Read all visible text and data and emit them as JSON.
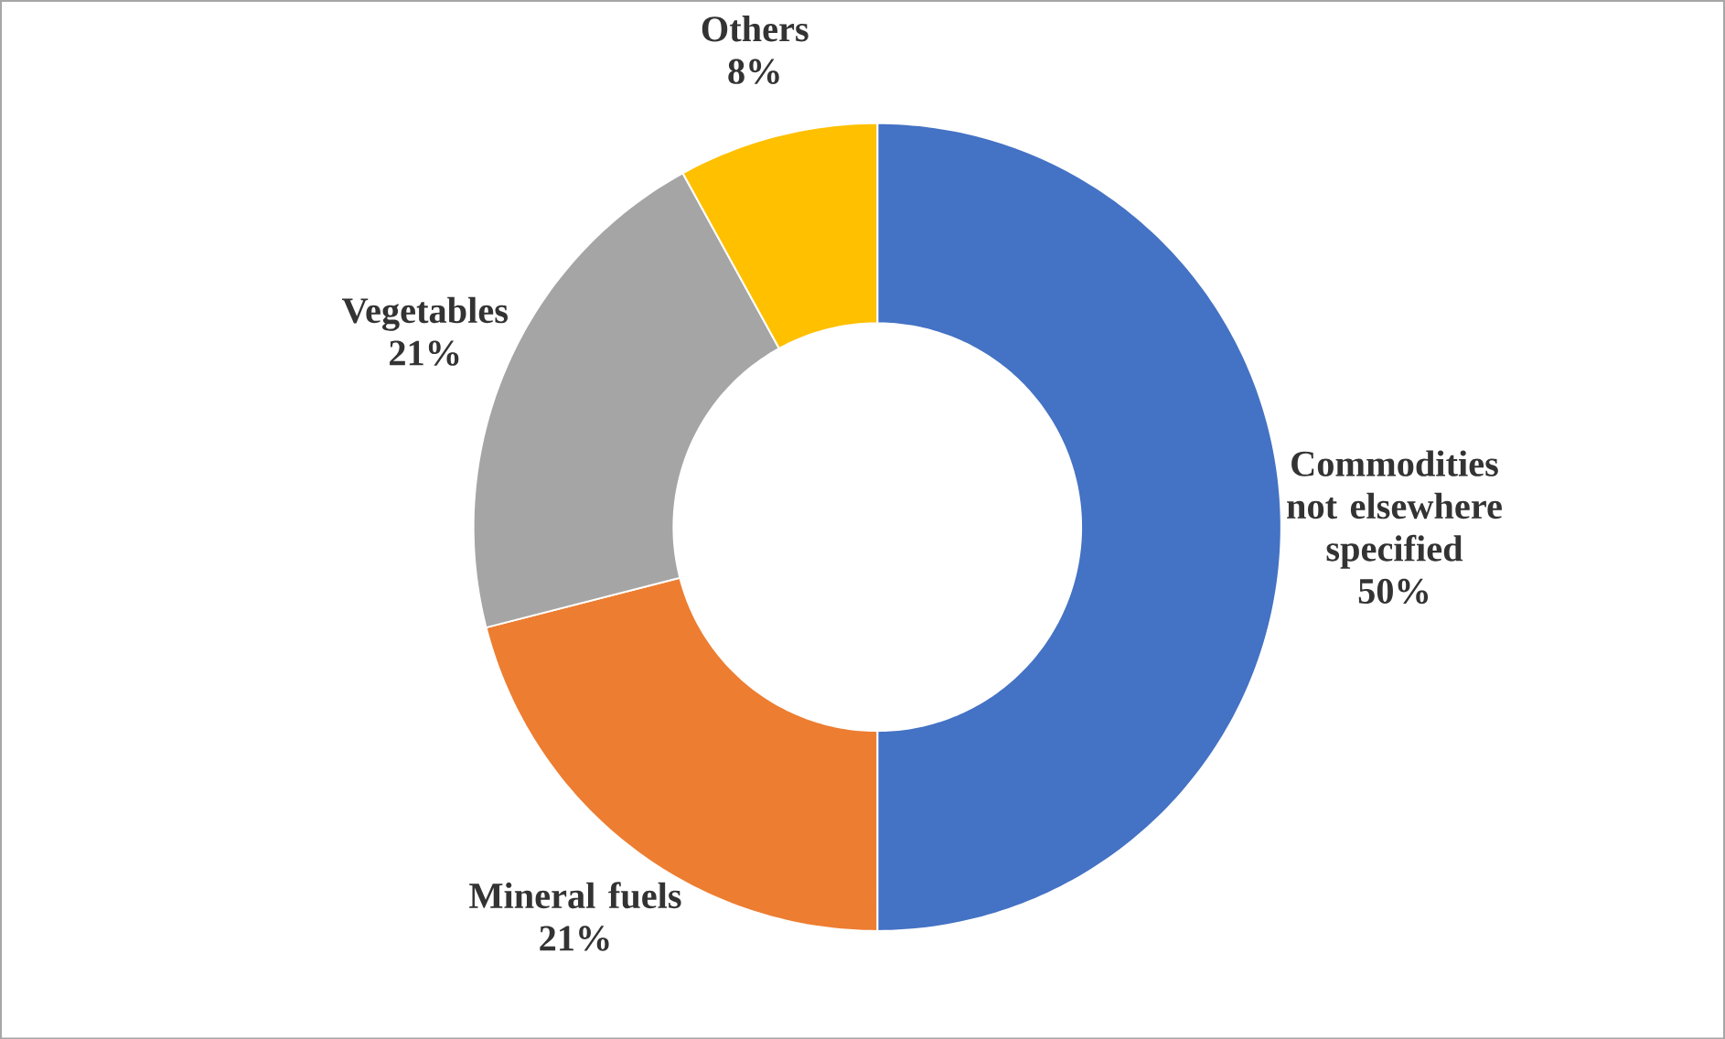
{
  "chart_data": {
    "type": "donut",
    "categories": [
      "Commodities not elsewhere specified",
      "Mineral fuels",
      "Vegetables",
      "Others"
    ],
    "values": [
      50,
      21,
      21,
      8
    ],
    "value_labels": [
      "50%",
      "21%",
      "21%",
      "8%"
    ],
    "colors": [
      "#4472c4",
      "#ed7d31",
      "#a5a5a5",
      "#ffc000"
    ]
  }
}
